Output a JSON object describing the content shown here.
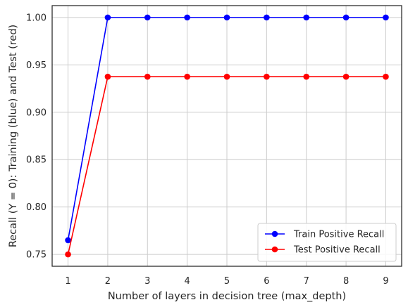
{
  "chart_data": {
    "type": "line",
    "title": "",
    "xlabel": "Number of layers in decision tree (max_depth)",
    "ylabel": "Recall (Y = 0): Training (blue) and Test (red)",
    "x": [
      1,
      2,
      3,
      4,
      5,
      6,
      7,
      8,
      9
    ],
    "x_ticks": [
      "1",
      "2",
      "3",
      "4",
      "5",
      "6",
      "7",
      "8",
      "9"
    ],
    "y_ticks": [
      "0.75",
      "0.80",
      "0.85",
      "0.90",
      "0.95",
      "1.00"
    ],
    "xlim": [
      0.6,
      9.4
    ],
    "ylim": [
      0.7375,
      1.0125
    ],
    "grid": true,
    "legend_position": "lower-right",
    "series": [
      {
        "name": "Train Positive Recall",
        "color": "#0000ff",
        "marker": "circle",
        "values": [
          0.765,
          1.0,
          1.0,
          1.0,
          1.0,
          1.0,
          1.0,
          1.0,
          1.0
        ]
      },
      {
        "name": "Test Positive Recall",
        "color": "#ff0000",
        "marker": "circle",
        "values": [
          0.75,
          0.9375,
          0.9375,
          0.9375,
          0.9375,
          0.9375,
          0.9375,
          0.9375,
          0.9375
        ]
      }
    ]
  }
}
